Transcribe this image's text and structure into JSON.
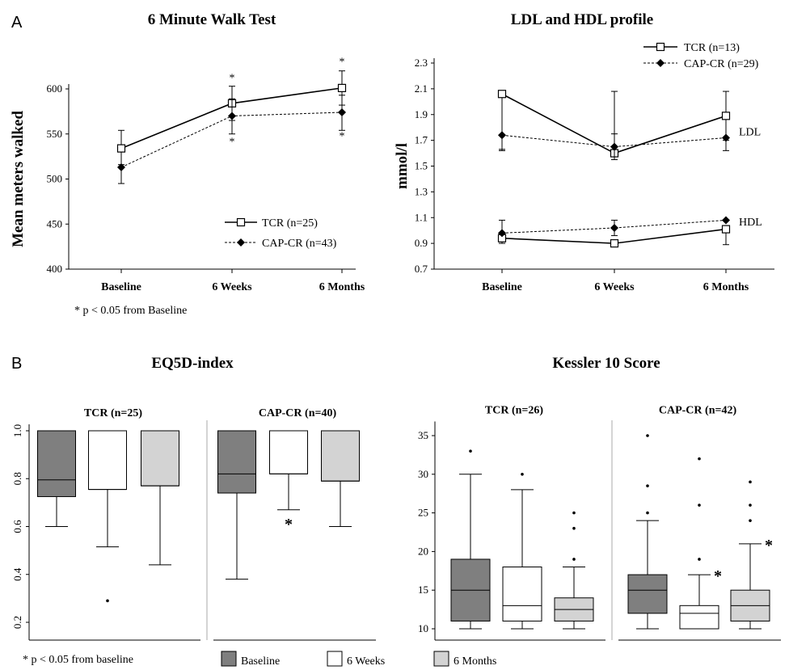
{
  "panels": {
    "a": "A",
    "b": "B"
  },
  "chart_data": [
    {
      "type": "line",
      "title": "6 Minute Walk Test",
      "ylabel": "Mean meters walked",
      "categories": [
        "Baseline",
        "6 Weeks",
        "6 Months"
      ],
      "ylim": [
        400,
        600
      ],
      "yticks": [
        "400",
        "450",
        "500",
        "550",
        "600"
      ],
      "series": [
        {
          "name": "TCR (n=25)",
          "values": [
            534,
            584,
            601
          ],
          "err_low": [
            516,
            565,
            582
          ],
          "err_high": [
            554,
            603,
            620
          ],
          "marker": "open-square",
          "line": "solid"
        },
        {
          "name": "CAP-CR (n=43)",
          "values": [
            513,
            570,
            574
          ],
          "err_low": [
            495,
            550,
            554
          ],
          "err_high": [
            530,
            589,
            593
          ],
          "marker": "filled-diamond",
          "line": "dashed"
        }
      ],
      "significance": [
        {
          "category": "6 Weeks",
          "series": "TCR (n=25)",
          "mark": "*"
        },
        {
          "category": "6 Weeks",
          "series": "CAP-CR (n=43)",
          "mark": "*"
        },
        {
          "category": "6 Months",
          "series": "TCR (n=25)",
          "mark": "*"
        },
        {
          "category": "6 Months",
          "series": "CAP-CR (n=43)",
          "mark": "*"
        }
      ],
      "footnote": "* p < 0.05 from Baseline"
    },
    {
      "type": "line",
      "title": "LDL and HDL profile",
      "ylabel": "mmol/l",
      "categories": [
        "Baseline",
        "6 Weeks",
        "6 Months"
      ],
      "ylim": [
        0.7,
        2.3
      ],
      "yticks": [
        "0.7",
        "0.9",
        "1.1",
        "1.3",
        "1.5",
        "1.7",
        "1.9",
        "2.1",
        "2.3"
      ],
      "series": [
        {
          "name": "TCR (n=13)",
          "group": "LDL",
          "values": [
            2.06,
            1.6,
            1.89
          ],
          "err_low": [
            1.63,
            1.6,
            1.7
          ],
          "err_high": [
            2.06,
            2.08,
            2.08
          ],
          "marker": "open-square",
          "line": "solid"
        },
        {
          "name": "CAP-CR (n=29)",
          "group": "LDL",
          "values": [
            1.74,
            1.65,
            1.72
          ],
          "err_low": [
            1.62,
            1.55,
            1.62
          ],
          "err_high": [
            1.74,
            1.75,
            1.72
          ],
          "marker": "filled-diamond",
          "line": "dashed"
        },
        {
          "name": "TCR (n=13)",
          "group": "HDL",
          "values": [
            0.94,
            0.9,
            1.01
          ],
          "err_low": [
            0.9,
            0.9,
            0.89
          ],
          "err_high": [
            0.94,
            0.9,
            1.01
          ],
          "marker": "open-square",
          "line": "solid"
        },
        {
          "name": "CAP-CR (n=29)",
          "group": "HDL",
          "values": [
            0.98,
            1.02,
            1.08
          ],
          "err_low": [
            0.98,
            0.96,
            1.08
          ],
          "err_high": [
            1.08,
            1.08,
            1.08
          ],
          "marker": "filled-diamond",
          "line": "dashed"
        }
      ],
      "group_labels": [
        "LDL",
        "HDL"
      ],
      "legend": [
        "TCR (n=13)",
        "CAP-CR (n=29)"
      ]
    },
    {
      "type": "box",
      "title": "EQ5D-index",
      "ylim": [
        0.2,
        1.0
      ],
      "yticks": [
        "0.2",
        "0.4",
        "0.6",
        "0.8",
        "1.0"
      ],
      "groups": [
        {
          "name": "TCR (n=25)",
          "boxes": [
            {
              "timepoint": "Baseline",
              "min": 0.6,
              "q1": 0.725,
              "median": 0.795,
              "q3": 1.0,
              "max": 1.0,
              "outliers": []
            },
            {
              "timepoint": "6 Weeks",
              "min": 0.515,
              "q1": 0.755,
              "median": 0.755,
              "q3": 1.0,
              "max": 1.0,
              "outliers": [
                0.29
              ]
            },
            {
              "timepoint": "6 Months",
              "min": 0.44,
              "q1": 0.77,
              "median": 0.77,
              "q3": 1.0,
              "max": 1.0,
              "outliers": []
            }
          ]
        },
        {
          "name": "CAP-CR (n=40)",
          "boxes": [
            {
              "timepoint": "Baseline",
              "min": 0.38,
              "q1": 0.74,
              "median": 0.82,
              "q3": 1.0,
              "max": 1.0,
              "outliers": []
            },
            {
              "timepoint": "6 Weeks",
              "min": 0.67,
              "q1": 0.82,
              "median": 0.82,
              "q3": 1.0,
              "max": 1.0,
              "outliers": [],
              "significant": "*"
            },
            {
              "timepoint": "6 Months",
              "min": 0.6,
              "q1": 0.79,
              "median": 0.79,
              "q3": 1.0,
              "max": 1.0,
              "outliers": []
            }
          ]
        }
      ],
      "footnote": "* p < 0.05 from baseline"
    },
    {
      "type": "box",
      "title": "Kessler 10 Score",
      "ylim": [
        10,
        36
      ],
      "yticks": [
        "10",
        "15",
        "20",
        "25",
        "30",
        "35"
      ],
      "groups": [
        {
          "name": "TCR (n=26)",
          "boxes": [
            {
              "timepoint": "Baseline",
              "min": 10,
              "q1": 11,
              "median": 15,
              "q3": 19,
              "max": 30,
              "outliers": [
                33
              ]
            },
            {
              "timepoint": "6 Weeks",
              "min": 10,
              "q1": 11,
              "median": 13,
              "q3": 18,
              "max": 28,
              "outliers": [
                30
              ]
            },
            {
              "timepoint": "6 Months",
              "min": 10,
              "q1": 11,
              "median": 12.5,
              "q3": 14,
              "max": 18,
              "outliers": [
                19,
                23,
                25
              ]
            }
          ]
        },
        {
          "name": "CAP-CR (n=42)",
          "boxes": [
            {
              "timepoint": "Baseline",
              "min": 10,
              "q1": 12,
              "median": 15,
              "q3": 17,
              "max": 24,
              "outliers": [
                25,
                28.5,
                35
              ]
            },
            {
              "timepoint": "6 Weeks",
              "min": 10,
              "q1": 10,
              "median": 12,
              "q3": 13,
              "max": 17,
              "outliers": [
                19,
                26,
                32
              ],
              "significant": "*"
            },
            {
              "timepoint": "6 Months",
              "min": 10,
              "q1": 11,
              "median": 13,
              "q3": 15,
              "max": 21,
              "outliers": [
                24,
                26,
                29
              ],
              "significant": "*"
            }
          ]
        }
      ]
    }
  ],
  "box_legend": [
    {
      "label": "Baseline",
      "color": "#7f7f7f"
    },
    {
      "label": "6 Weeks",
      "color": "#ffffff"
    },
    {
      "label": "6 Months",
      "color": "#d3d3d3"
    }
  ]
}
